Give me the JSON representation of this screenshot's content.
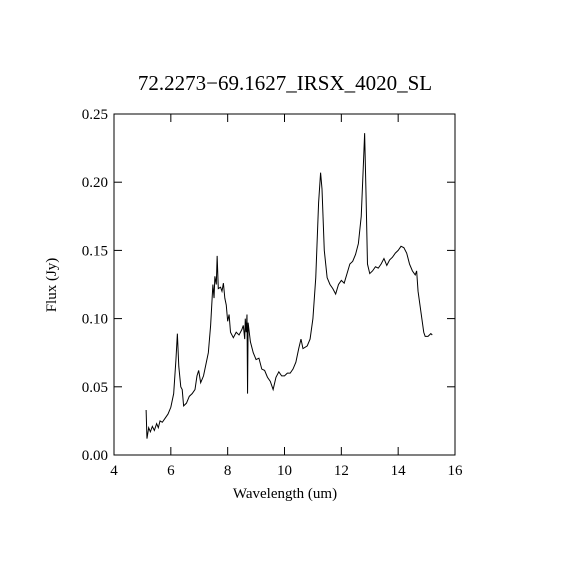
{
  "chart_data": {
    "type": "line",
    "title": "72.2273−69.1627_IRSX_4020_SL",
    "x_label": "Wavelength (um)",
    "y_label": "Flux (Jy)",
    "xlim": [
      4,
      16
    ],
    "xticks": [
      4,
      6,
      8,
      10,
      12,
      14,
      16
    ],
    "ylim": [
      0,
      0.25
    ],
    "yticks": [
      {
        "value": 0,
        "label": "0.00"
      },
      {
        "value": 0.05,
        "label": "0.05"
      },
      {
        "value": 0.1,
        "label": "0.10"
      },
      {
        "value": 0.15,
        "label": "0.15"
      },
      {
        "value": 0.2,
        "label": "0.20"
      },
      {
        "value": 0.25,
        "label": "0.25"
      }
    ],
    "series": [
      {
        "color": "#000000",
        "x": [
          5.13,
          5.16,
          5.22,
          5.28,
          5.35,
          5.42,
          5.5,
          5.56,
          5.62,
          5.7,
          5.8,
          5.9,
          6.0,
          6.1,
          6.18,
          6.23,
          6.28,
          6.35,
          6.4,
          6.45,
          6.55,
          6.65,
          6.75,
          6.85,
          6.92,
          6.98,
          7.05,
          7.15,
          7.25,
          7.32,
          7.4,
          7.48,
          7.52,
          7.55,
          7.6,
          7.63,
          7.67,
          7.75,
          7.8,
          7.85,
          7.9,
          7.95,
          8.0,
          8.05,
          8.1,
          8.2,
          8.3,
          8.4,
          8.5,
          8.55,
          8.6,
          8.62,
          8.65,
          8.68,
          8.7,
          8.72,
          8.8,
          8.9,
          9.0,
          9.1,
          9.2,
          9.3,
          9.4,
          9.5,
          9.6,
          9.7,
          9.8,
          9.9,
          10.0,
          10.1,
          10.2,
          10.3,
          10.4,
          10.5,
          10.58,
          10.65,
          10.8,
          10.9,
          11.0,
          11.1,
          11.2,
          11.27,
          11.32,
          11.4,
          11.5,
          11.6,
          11.7,
          11.8,
          11.9,
          12.0,
          12.1,
          12.2,
          12.3,
          12.4,
          12.5,
          12.6,
          12.7,
          12.78,
          12.82,
          12.87,
          12.92,
          13.0,
          13.1,
          13.2,
          13.3,
          13.4,
          13.5,
          13.6,
          13.7,
          13.8,
          13.9,
          14.0,
          14.1,
          14.2,
          14.3,
          14.4,
          14.5,
          14.6,
          14.65,
          14.7,
          14.8,
          14.9,
          14.95,
          15.05,
          15.15,
          15.2
        ],
        "values": [
          0.033,
          0.012,
          0.02,
          0.017,
          0.021,
          0.018,
          0.023,
          0.02,
          0.025,
          0.024,
          0.027,
          0.03,
          0.035,
          0.045,
          0.07,
          0.089,
          0.065,
          0.05,
          0.048,
          0.036,
          0.038,
          0.043,
          0.045,
          0.048,
          0.058,
          0.062,
          0.053,
          0.058,
          0.068,
          0.075,
          0.095,
          0.125,
          0.115,
          0.131,
          0.125,
          0.146,
          0.122,
          0.123,
          0.12,
          0.126,
          0.115,
          0.11,
          0.098,
          0.103,
          0.09,
          0.086,
          0.09,
          0.088,
          0.092,
          0.095,
          0.085,
          0.1,
          0.09,
          0.103,
          0.045,
          0.097,
          0.083,
          0.075,
          0.07,
          0.071,
          0.063,
          0.062,
          0.057,
          0.054,
          0.048,
          0.057,
          0.061,
          0.058,
          0.058,
          0.06,
          0.06,
          0.063,
          0.068,
          0.078,
          0.085,
          0.078,
          0.08,
          0.085,
          0.1,
          0.13,
          0.185,
          0.207,
          0.195,
          0.15,
          0.13,
          0.125,
          0.122,
          0.118,
          0.125,
          0.128,
          0.126,
          0.133,
          0.14,
          0.142,
          0.147,
          0.155,
          0.175,
          0.215,
          0.236,
          0.19,
          0.14,
          0.133,
          0.135,
          0.138,
          0.137,
          0.14,
          0.144,
          0.139,
          0.143,
          0.145,
          0.148,
          0.15,
          0.153,
          0.152,
          0.148,
          0.14,
          0.135,
          0.132,
          0.135,
          0.12,
          0.105,
          0.09,
          0.087,
          0.087,
          0.089,
          0.088
        ]
      }
    ]
  }
}
